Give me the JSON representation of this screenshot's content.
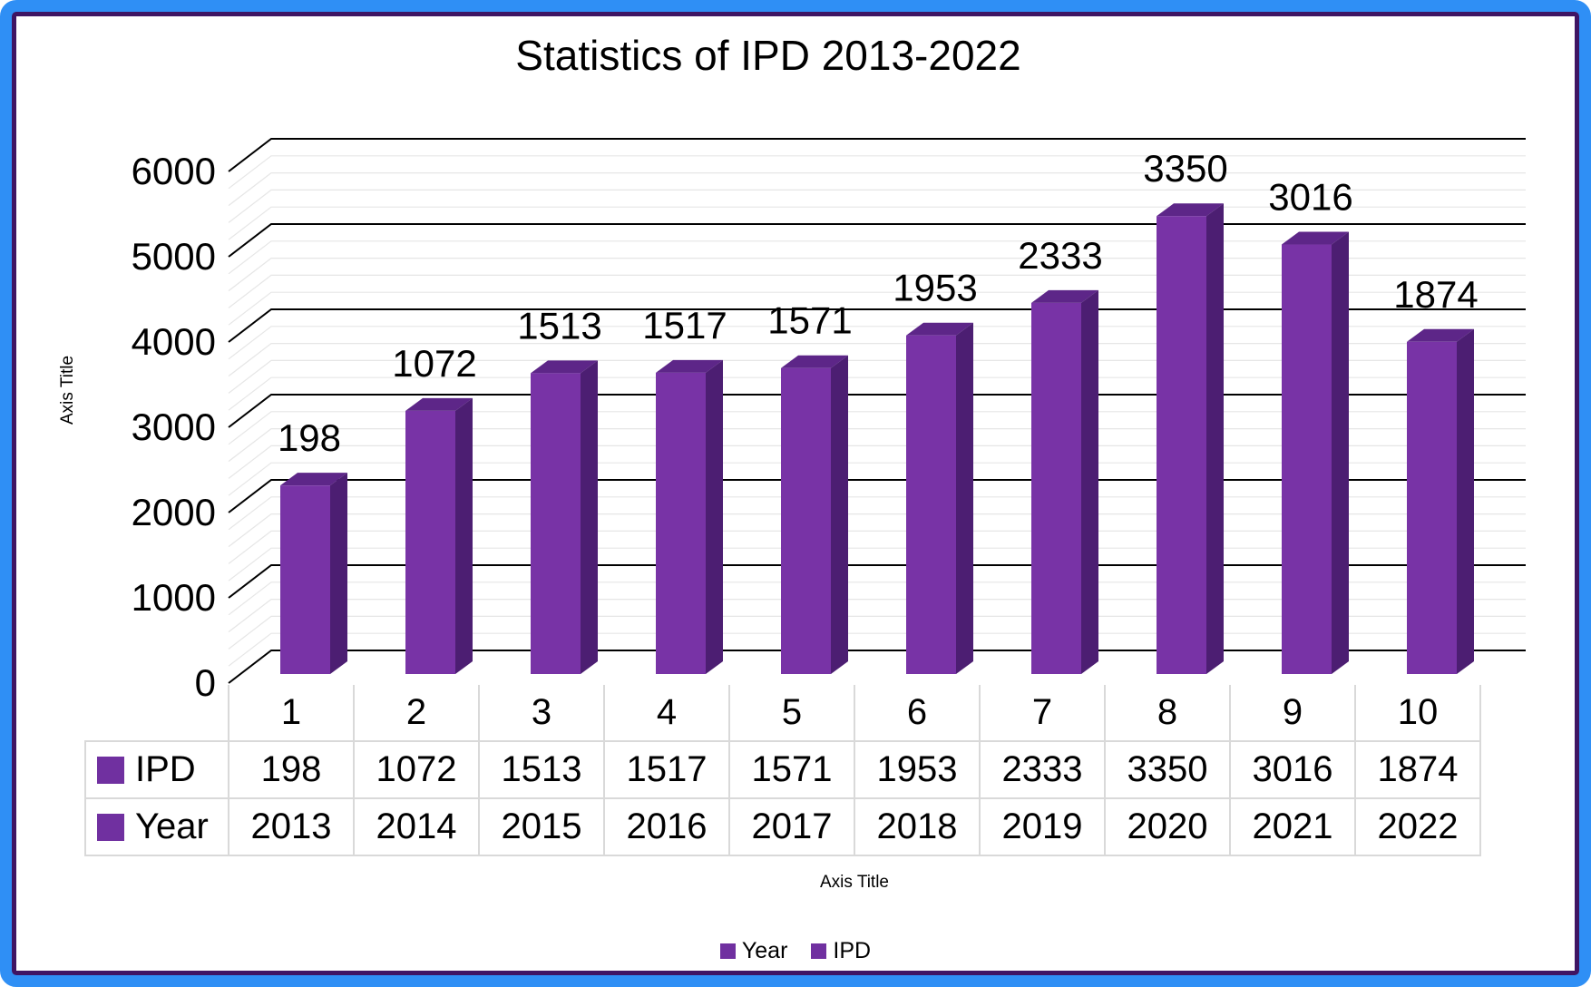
{
  "window": {
    "background": "#FFFFFF",
    "outer_border_color": "#2F8FF5",
    "inner_border_color": "#3F1563"
  },
  "chart_data": {
    "type": "bar",
    "variant": "3d-stacked-column",
    "title": "Statistics of IPD 2013-2022",
    "categories": [
      "1",
      "2",
      "3",
      "4",
      "5",
      "6",
      "7",
      "8",
      "9",
      "10"
    ],
    "series": [
      {
        "name": "Year",
        "values": [
          2013,
          2014,
          2015,
          2016,
          2017,
          2018,
          2019,
          2020,
          2021,
          2022
        ]
      },
      {
        "name": "IPD",
        "values": [
          198,
          1072,
          1513,
          1517,
          1571,
          1953,
          2333,
          3350,
          3016,
          1874
        ]
      }
    ],
    "stacked": true,
    "data_labels_series": "IPD",
    "data_labels": [
      "198",
      "1072",
      "1513",
      "1517",
      "1571",
      "1953",
      "2333",
      "3350",
      "3016",
      "1874"
    ],
    "y_axis": {
      "title": "Axis Title",
      "min": 0,
      "max": 6000,
      "major_unit": 1000,
      "minor_unit": 200,
      "tick_labels": [
        "0",
        "1000",
        "2000",
        "3000",
        "4000",
        "5000",
        "6000"
      ]
    },
    "x_axis": {
      "title": "Axis Title"
    },
    "legend": {
      "position": "bottom",
      "items": [
        "Year",
        "IPD"
      ]
    },
    "grid": {
      "major": true,
      "minor": true
    },
    "colors": {
      "bar_front": "#7833A6",
      "bar_side": "#4C1E72",
      "bar_top": "#5D2688",
      "series_swatch": "#7030A0",
      "gridline_major": "#000000",
      "gridline_minor": "#E6E6E6",
      "table_border": "#D9D9D9"
    },
    "data_table": {
      "shown": true,
      "rows": [
        {
          "label": "IPD",
          "values": [
            "198",
            "1072",
            "1513",
            "1517",
            "1571",
            "1953",
            "2333",
            "3350",
            "3016",
            "1874"
          ]
        },
        {
          "label": "Year",
          "values": [
            "2013",
            "2014",
            "2015",
            "2016",
            "2017",
            "2018",
            "2019",
            "2020",
            "2021",
            "2022"
          ]
        }
      ]
    }
  }
}
